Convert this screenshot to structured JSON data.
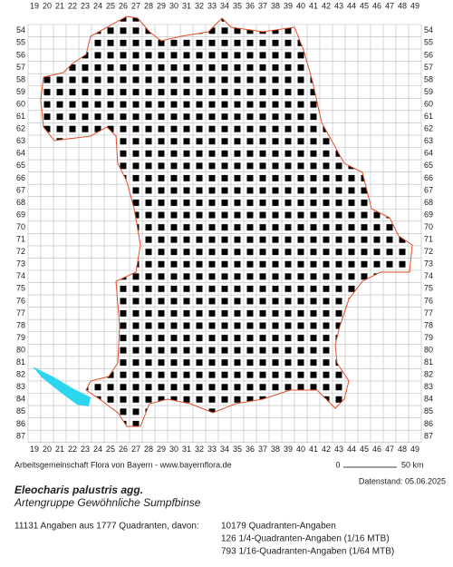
{
  "map": {
    "x_labels": [
      19,
      20,
      21,
      22,
      23,
      24,
      25,
      26,
      27,
      28,
      29,
      30,
      31,
      32,
      33,
      34,
      35,
      36,
      37,
      38,
      39,
      40,
      41,
      42,
      43,
      44,
      45,
      46,
      47,
      48,
      49
    ],
    "y_labels": [
      54,
      55,
      56,
      57,
      58,
      59,
      60,
      61,
      62,
      63,
      64,
      65,
      66,
      67,
      68,
      69,
      70,
      71,
      72,
      73,
      74,
      75,
      76,
      77,
      78,
      79,
      80,
      81,
      82,
      83,
      84,
      85,
      86,
      87
    ],
    "credit": "Arbeitsgemeinschaft Flora von Bayern - www.bayernflora.de",
    "scale_start": "0",
    "scale_end": "50 km",
    "date": "Datenstand: 05.06.2025"
  },
  "species": {
    "name": "Eleocharis palustris agg.",
    "group": "Artengruppe Gewöhnliche Sumpfbinse"
  },
  "stats": {
    "summary": "11131 Angaben aus 1777 Quadranten, davon:",
    "lines": [
      "10179 Quadranten-Angaben",
      "126 1/4-Quadranten-Angaben (1/16 MTB)",
      "793 1/16-Quadranten-Angaben (1/64 MTB)"
    ]
  }
}
